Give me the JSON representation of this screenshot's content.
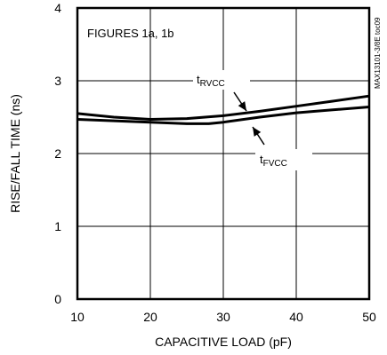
{
  "chart_data": {
    "type": "line",
    "xlabel": "CAPACITIVE LOAD (pF)",
    "ylabel": "RISE/FALL TIME (ns)",
    "xlim": [
      10,
      50
    ],
    "ylim": [
      0,
      4
    ],
    "xticks": [
      10,
      20,
      30,
      40,
      50
    ],
    "yticks": [
      0,
      1,
      2,
      3,
      4
    ],
    "grid": true,
    "annotation": "FIGURES 1a, 1b",
    "side_label": "MAX13101-3/8E toc09",
    "series": [
      {
        "name_main": "t",
        "name_sub": "RVCC",
        "x": [
          10,
          15,
          20,
          25,
          30,
          35,
          40,
          45,
          50
        ],
        "y": [
          2.55,
          2.5,
          2.47,
          2.48,
          2.52,
          2.58,
          2.65,
          2.72,
          2.79
        ]
      },
      {
        "name_main": "t",
        "name_sub": "FVCC",
        "x": [
          10,
          15,
          20,
          25,
          28,
          30,
          35,
          40,
          45,
          50
        ],
        "y": [
          2.47,
          2.45,
          2.43,
          2.41,
          2.41,
          2.43,
          2.5,
          2.56,
          2.6,
          2.64
        ]
      }
    ]
  }
}
